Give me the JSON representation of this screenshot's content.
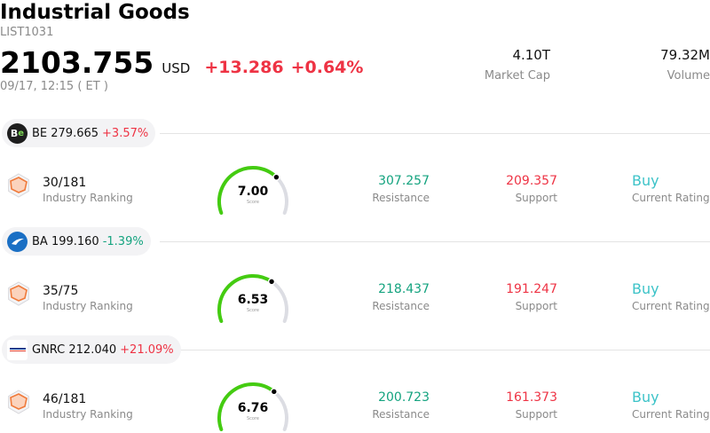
{
  "header": {
    "title": "Industrial Goods",
    "code": "LIST1031",
    "price": "2103.755",
    "currency": "USD",
    "change": "+13.286",
    "change_pct": "+0.64%",
    "time": "09/17, 12:15  ( ET )",
    "market_cap_value": "4.10T",
    "market_cap_label": "Market Cap",
    "volume_value": "79.32M",
    "volume_label": "Volume"
  },
  "colors": {
    "up": "#ee3344",
    "down": "#14a37f",
    "rating": "#3cc3c8",
    "gauge_fill": "#44cc11",
    "gauge_track": "#dcdde3",
    "rank_icon": "#f07a3a"
  },
  "labels": {
    "industry_ranking": "Industry Ranking",
    "score": "Score",
    "resistance": "Resistance",
    "support": "Support",
    "current_rating": "Current Rating"
  },
  "stocks": [
    {
      "symbol_price": "BE 279.665",
      "change_pct": "+3.57%",
      "direction": "up",
      "logo_icon": "bloom-energy-logo-icon",
      "rank": "30/181",
      "score": "7.00",
      "score_fraction": 0.7,
      "resistance": "307.257",
      "support": "209.357",
      "rating": "Buy"
    },
    {
      "symbol_price": "BA 199.160",
      "change_pct": "-1.39%",
      "direction": "down",
      "logo_icon": "boeing-logo-icon",
      "rank": "35/75",
      "score": "6.53",
      "score_fraction": 0.653,
      "resistance": "218.437",
      "support": "191.247",
      "rating": "Buy"
    },
    {
      "symbol_price": "GNRC 212.040",
      "change_pct": "+21.09%",
      "direction": "up",
      "logo_icon": "generac-logo-icon",
      "rank": "46/181",
      "score": "6.76",
      "score_fraction": 0.676,
      "resistance": "200.723",
      "support": "161.373",
      "rating": "Buy"
    }
  ]
}
